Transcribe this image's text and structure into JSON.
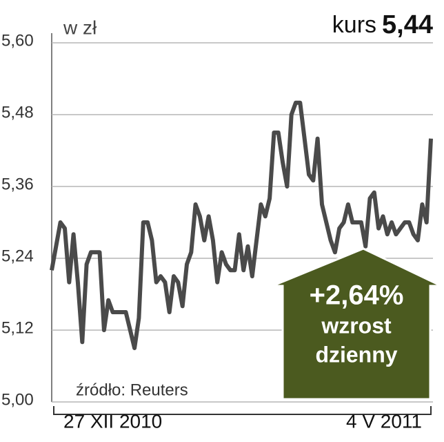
{
  "chart_data": {
    "type": "line",
    "unit_label": "w zł",
    "price_label": "kurs",
    "price": "5,44",
    "source": "źródło: Reuters",
    "annotation": {
      "change": "+2,64%",
      "line1": "wzrost",
      "line2": "dzienny",
      "color": "#4b5a1f"
    },
    "categories": [
      "27 XII 2010",
      null,
      null,
      null,
      null,
      null,
      null,
      null,
      null,
      null,
      null,
      null,
      null,
      null,
      null,
      null,
      null,
      null,
      null,
      null,
      null,
      null,
      null,
      null,
      null,
      null,
      null,
      null,
      null,
      null,
      null,
      null,
      null,
      null,
      null,
      null,
      null,
      null,
      null,
      null,
      null,
      null,
      null,
      null,
      null,
      null,
      null,
      null,
      null,
      null,
      null,
      null,
      null,
      null,
      null,
      null,
      null,
      null,
      null,
      null,
      null,
      null,
      null,
      null,
      null,
      null,
      null,
      null,
      null,
      null,
      null,
      null,
      null,
      null,
      null,
      null,
      null,
      null,
      null,
      null,
      null,
      null,
      null,
      null,
      null,
      null,
      null,
      "4 V 2011"
    ],
    "series": [
      {
        "name": null,
        "color": "#4a4a4a",
        "values": [
          5.22,
          5.26,
          5.3,
          5.29,
          5.2,
          5.28,
          5.2,
          5.1,
          5.23,
          5.25,
          5.25,
          5.25,
          5.12,
          5.17,
          5.15,
          5.15,
          5.15,
          5.15,
          5.12,
          5.09,
          5.14,
          5.3,
          5.3,
          5.27,
          5.2,
          5.21,
          5.2,
          5.15,
          5.21,
          5.2,
          5.16,
          5.23,
          5.25,
          5.33,
          5.31,
          5.27,
          5.31,
          5.27,
          5.2,
          5.25,
          5.23,
          5.22,
          5.22,
          5.28,
          5.22,
          5.26,
          5.21,
          5.27,
          5.33,
          5.31,
          5.34,
          5.45,
          5.45,
          5.4,
          5.36,
          5.48,
          5.5,
          5.5,
          5.44,
          5.38,
          5.37,
          5.44,
          5.33,
          5.3,
          5.27,
          5.25,
          5.29,
          5.3,
          5.33,
          5.3,
          5.3,
          5.3,
          5.26,
          5.34,
          5.35,
          5.29,
          5.31,
          5.28,
          5.3,
          5.28,
          5.29,
          5.3,
          5.3,
          5.28,
          5.27,
          5.33,
          5.3,
          5.44
        ]
      }
    ],
    "ylim": [
      5.0,
      5.6
    ],
    "yticks": [
      {
        "value": 5.0,
        "label": "5,00"
      },
      {
        "value": 5.12,
        "label": "5,12"
      },
      {
        "value": 5.24,
        "label": "5,24"
      },
      {
        "value": 5.36,
        "label": "5,36"
      },
      {
        "value": 5.48,
        "label": "5,48"
      },
      {
        "value": 5.6,
        "label": "5,60"
      }
    ],
    "grid": true
  }
}
